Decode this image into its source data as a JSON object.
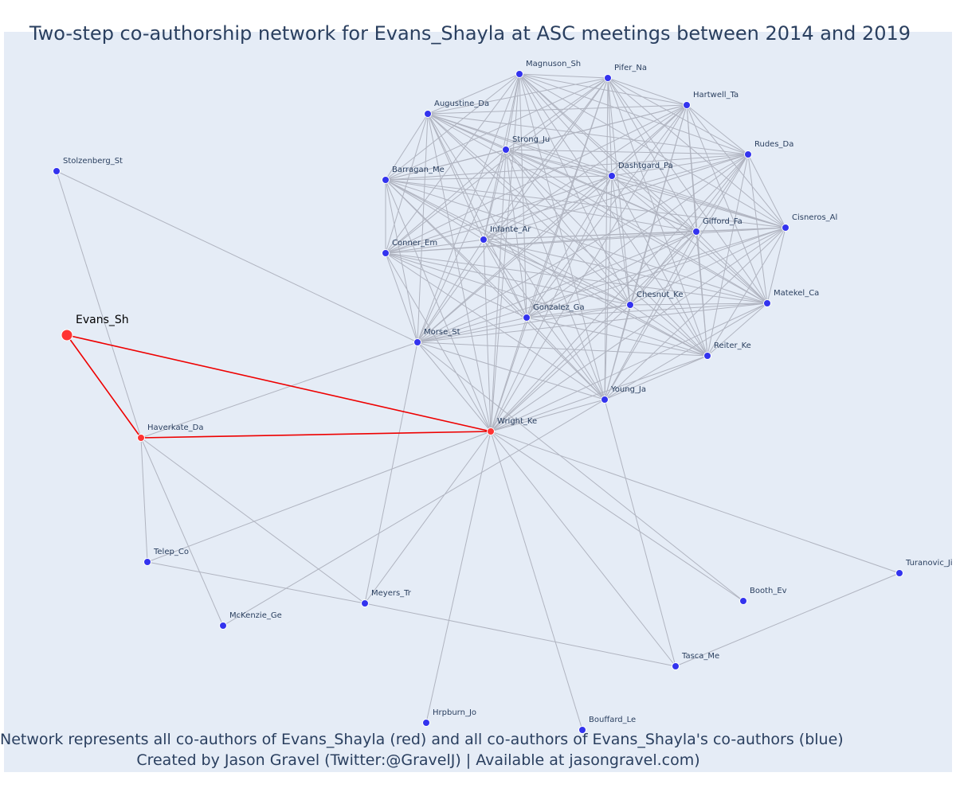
{
  "title": "Two-step co-authorship network for Evans_Shayla at ASC meetings between 2014 and 2019",
  "footer": {
    "line1": "Network represents all co-authors of Evans_Shayla (red) and all co-authors of Evans_Shayla's co-authors (blue)",
    "line2": "Created by Jason Gravel (Twitter:@GravelJ) | Available at jasongravel.com)"
  },
  "colors": {
    "background": "#e5ecf6",
    "focal_node": "#ff3333",
    "first_step_node": "#ff3333",
    "second_step_node": "#3333ee",
    "focal_edge": "#ee0000",
    "other_edge": "#b0b4c0"
  },
  "nodes": [
    {
      "id": "Evans_Sh",
      "group": "focal"
    },
    {
      "id": "Haverkate_Da",
      "group": "coauthor"
    },
    {
      "id": "Wright_Ke",
      "group": "coauthor"
    },
    {
      "id": "Stolzenberg_St",
      "group": "second"
    },
    {
      "id": "Magnuson_Sh",
      "group": "second"
    },
    {
      "id": "Pifer_Na",
      "group": "second"
    },
    {
      "id": "Hartwell_Ta",
      "group": "second"
    },
    {
      "id": "Augustine_Da",
      "group": "second"
    },
    {
      "id": "Rudes_Da",
      "group": "second"
    },
    {
      "id": "Strong_Ju",
      "group": "second"
    },
    {
      "id": "Dashtgard_Pa",
      "group": "second"
    },
    {
      "id": "Barragan_Me",
      "group": "second"
    },
    {
      "id": "Cisneros_Al",
      "group": "second"
    },
    {
      "id": "Gifford_Fa",
      "group": "second"
    },
    {
      "id": "Infante_Ar",
      "group": "second"
    },
    {
      "id": "Conner_Em",
      "group": "second"
    },
    {
      "id": "Matekel_Ca",
      "group": "second"
    },
    {
      "id": "Chesnut_Ke",
      "group": "second"
    },
    {
      "id": "Gonzalez_Ga",
      "group": "second"
    },
    {
      "id": "Morse_St",
      "group": "second"
    },
    {
      "id": "Reiter_Ke",
      "group": "second"
    },
    {
      "id": "Young_Ja",
      "group": "second"
    },
    {
      "id": "Telep_Co",
      "group": "second"
    },
    {
      "id": "Turanovic_Ji",
      "group": "second"
    },
    {
      "id": "Booth_Ev",
      "group": "second"
    },
    {
      "id": "Meyers_Tr",
      "group": "second"
    },
    {
      "id": "McKenzie_Ge",
      "group": "second"
    },
    {
      "id": "Tasca_Me",
      "group": "second"
    },
    {
      "id": "Hrpburn_Jo",
      "group": "second"
    },
    {
      "id": "Bouffard_Le",
      "group": "second"
    }
  ]
}
